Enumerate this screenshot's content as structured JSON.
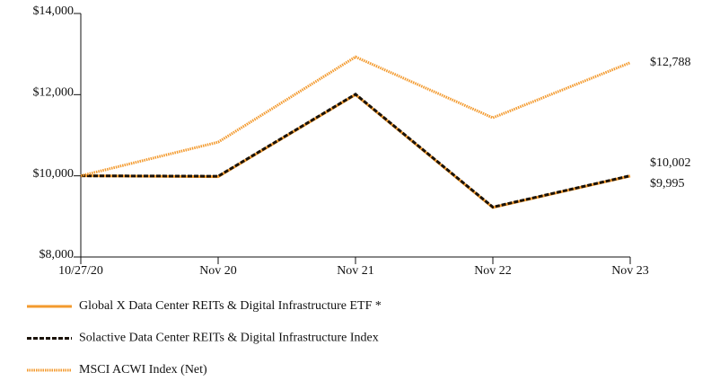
{
  "chart_data": {
    "type": "line",
    "categories": [
      "10/27/20",
      "Nov 20",
      "Nov 21",
      "Nov 22",
      "Nov 23"
    ],
    "series": [
      {
        "name": "Global X Data Center REITs & Digital Infrastructure ETF *",
        "color": "#f39a2e",
        "style": "solid",
        "values": [
          10000,
          9980,
          12000,
          9220,
          9995
        ],
        "value_labels": [
          null,
          null,
          null,
          null,
          "$9,995"
        ]
      },
      {
        "name": "Solactive Data Center REITs & Digital Infrastructure Index",
        "color": "#1a1208",
        "style": "dashed",
        "values": [
          10000,
          9990,
          12010,
          9230,
          10002
        ],
        "value_labels": [
          null,
          null,
          null,
          null,
          "$10,002"
        ]
      },
      {
        "name": "MSCI ACWI Index (Net)",
        "color": "#f39a2e",
        "style": "dotted",
        "values": [
          10000,
          10830,
          12930,
          11430,
          12788
        ],
        "value_labels": [
          null,
          null,
          null,
          null,
          "$12,788"
        ]
      }
    ],
    "ylim": [
      8000,
      14000
    ],
    "yticks": [
      {
        "value": 8000,
        "label": "$8,000"
      },
      {
        "value": 10000,
        "label": "$10,000"
      },
      {
        "value": 12000,
        "label": "$12,000"
      },
      {
        "value": 14000,
        "label": "$14,000"
      }
    ],
    "grid": false
  }
}
